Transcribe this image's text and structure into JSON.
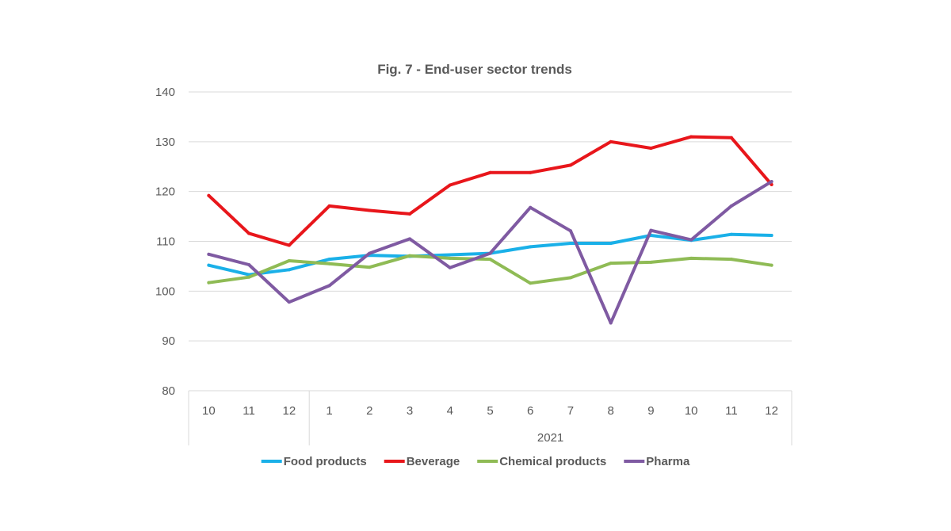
{
  "chart_data": {
    "type": "line",
    "title": "Fig. 7 - End-user sector trends",
    "xlabel": "",
    "ylabel": "",
    "ylim": [
      80,
      140
    ],
    "yticks": [
      80,
      90,
      100,
      110,
      120,
      130,
      140
    ],
    "categories": [
      "10",
      "11",
      "12",
      "1",
      "2",
      "3",
      "4",
      "5",
      "6",
      "7",
      "8",
      "9",
      "10",
      "11",
      "12"
    ],
    "category_groups": [
      {
        "label": "",
        "count": 3
      },
      {
        "label": "2021",
        "count": 12
      }
    ],
    "grid": true,
    "legend_position": "bottom",
    "series": [
      {
        "name": "Food products",
        "color": "#1ab0e8",
        "values": [
          105.2,
          103.3,
          104.3,
          106.4,
          107.2,
          107.0,
          107.3,
          107.6,
          108.9,
          109.6,
          109.6,
          111.2,
          110.2,
          111.4,
          111.2
        ]
      },
      {
        "name": "Beverage",
        "color": "#e8161b",
        "values": [
          119.2,
          111.6,
          109.2,
          117.1,
          116.2,
          115.5,
          121.3,
          123.8,
          123.8,
          125.3,
          130.0,
          128.7,
          131.0,
          130.8,
          121.4
        ]
      },
      {
        "name": "Chemical products",
        "color": "#8fbb55",
        "values": [
          101.7,
          102.8,
          106.1,
          105.5,
          104.8,
          107.1,
          106.6,
          106.4,
          101.6,
          102.7,
          105.6,
          105.8,
          106.6,
          106.4,
          105.2
        ]
      },
      {
        "name": "Pharma",
        "color": "#7f5aa2",
        "values": [
          107.4,
          105.3,
          97.8,
          101.1,
          107.6,
          110.5,
          104.7,
          107.6,
          116.8,
          112.1,
          93.6,
          112.2,
          110.3,
          117.1,
          122.0
        ]
      }
    ]
  }
}
